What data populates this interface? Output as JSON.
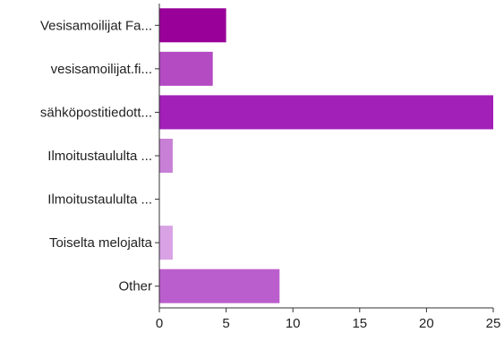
{
  "chart_data": {
    "type": "bar",
    "orientation": "horizontal",
    "categories": [
      "Vesisamoilijat Fa...",
      "vesisamoilijat.fi...",
      "sähköpostitiedott...",
      "Ilmoitustaululta ...",
      "Ilmoitustaululta ...",
      "Toiselta melojalta",
      "Other"
    ],
    "values": [
      5,
      4,
      25,
      1,
      0,
      1,
      9
    ],
    "colors": [
      "#990099",
      "#b44bc3",
      "#a21fb8",
      "#c87fd6",
      "#c070d0",
      "#d9a2e4",
      "#bb5ecd"
    ],
    "xlim": [
      0,
      25
    ],
    "xticks": [
      0,
      5,
      10,
      15,
      20,
      25
    ],
    "title": "",
    "xlabel": "",
    "ylabel": "",
    "grid": false,
    "legend": "none"
  }
}
